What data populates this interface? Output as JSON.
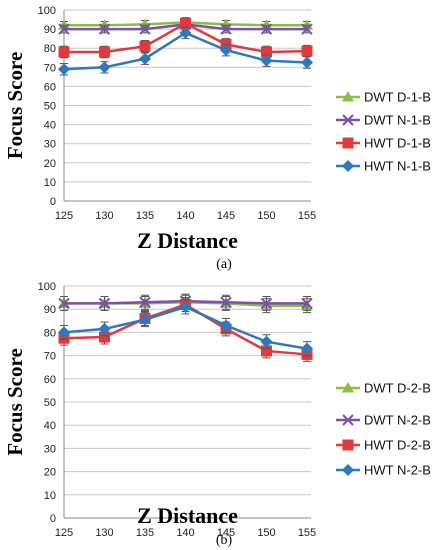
{
  "colors": {
    "DWT_D": "#8fbc46",
    "DWT_N": "#7b52a6",
    "HWT_D": "#e0393e",
    "HWT_N": "#2e78bd",
    "grid": "#c8c8c8",
    "error_bar": "#555555"
  },
  "chart_data": [
    {
      "type": "line",
      "panel_label": "(a)",
      "xlabel": "Z Distance",
      "ylabel": "Focus Score",
      "x": [
        125,
        130,
        135,
        140,
        145,
        150,
        155
      ],
      "ylim": [
        0,
        100
      ],
      "yticks": [
        0,
        10,
        20,
        30,
        40,
        50,
        60,
        70,
        80,
        90,
        100
      ],
      "grid": "horizontal",
      "legend_position": "right",
      "series": [
        {
          "name": "DWT D-1-B",
          "marker": "triangle",
          "color_key": "DWT_D",
          "values": [
            92,
            92,
            92.5,
            93.5,
            92.5,
            92,
            92
          ],
          "error": [
            2,
            2,
            2,
            2,
            2,
            2,
            2
          ]
        },
        {
          "name": "DWT N-1-B",
          "marker": "x",
          "color_key": "DWT_N",
          "values": [
            90,
            90,
            90,
            92.5,
            90,
            90,
            90
          ],
          "error": [
            2,
            2,
            2,
            2,
            2,
            2,
            2
          ]
        },
        {
          "name": "HWT D-1-B",
          "marker": "square",
          "color_key": "HWT_D",
          "values": [
            78,
            78,
            81,
            93,
            82,
            78,
            78.5
          ],
          "error": [
            3,
            3,
            3,
            3,
            3,
            3,
            3
          ]
        },
        {
          "name": "HWT N-1-B",
          "marker": "diamond",
          "color_key": "HWT_N",
          "values": [
            69,
            70,
            74.5,
            88,
            79,
            73.5,
            72.5
          ],
          "error": [
            3,
            3,
            3,
            3,
            3,
            3,
            3
          ]
        }
      ]
    },
    {
      "type": "line",
      "panel_label": "(b)",
      "xlabel": "Z Distance",
      "ylabel": "Focus Score",
      "x": [
        125,
        130,
        135,
        140,
        145,
        150,
        155
      ],
      "ylim": [
        0,
        100
      ],
      "yticks": [
        0,
        10,
        20,
        30,
        40,
        50,
        60,
        70,
        80,
        90,
        100
      ],
      "grid": "horizontal",
      "legend_position": "right",
      "series": [
        {
          "name": "DWT D-2-B",
          "marker": "triangle",
          "color_key": "DWT_D",
          "values": [
            92.5,
            92.5,
            92.5,
            93,
            92.5,
            91.5,
            91.5
          ],
          "error": [
            3,
            3,
            3,
            3,
            3,
            3,
            3
          ]
        },
        {
          "name": "DWT N-2-B",
          "marker": "x",
          "color_key": "DWT_N",
          "values": [
            92.5,
            92.5,
            93,
            93.5,
            93,
            92.5,
            92.5
          ],
          "error": [
            3,
            3,
            3,
            3,
            3,
            3,
            3
          ]
        },
        {
          "name": "HWT D-2-B",
          "marker": "square",
          "color_key": "HWT_D",
          "values": [
            77.5,
            78,
            86,
            92,
            81.5,
            72,
            70.5
          ],
          "error": [
            3,
            3,
            3,
            3,
            3,
            3,
            3
          ]
        },
        {
          "name": "HWT N-2-B",
          "marker": "diamond",
          "color_key": "HWT_N",
          "values": [
            80,
            81.5,
            85.5,
            91,
            83,
            76,
            73
          ],
          "error": [
            3,
            3,
            3,
            3,
            3,
            3,
            3
          ]
        }
      ]
    }
  ]
}
